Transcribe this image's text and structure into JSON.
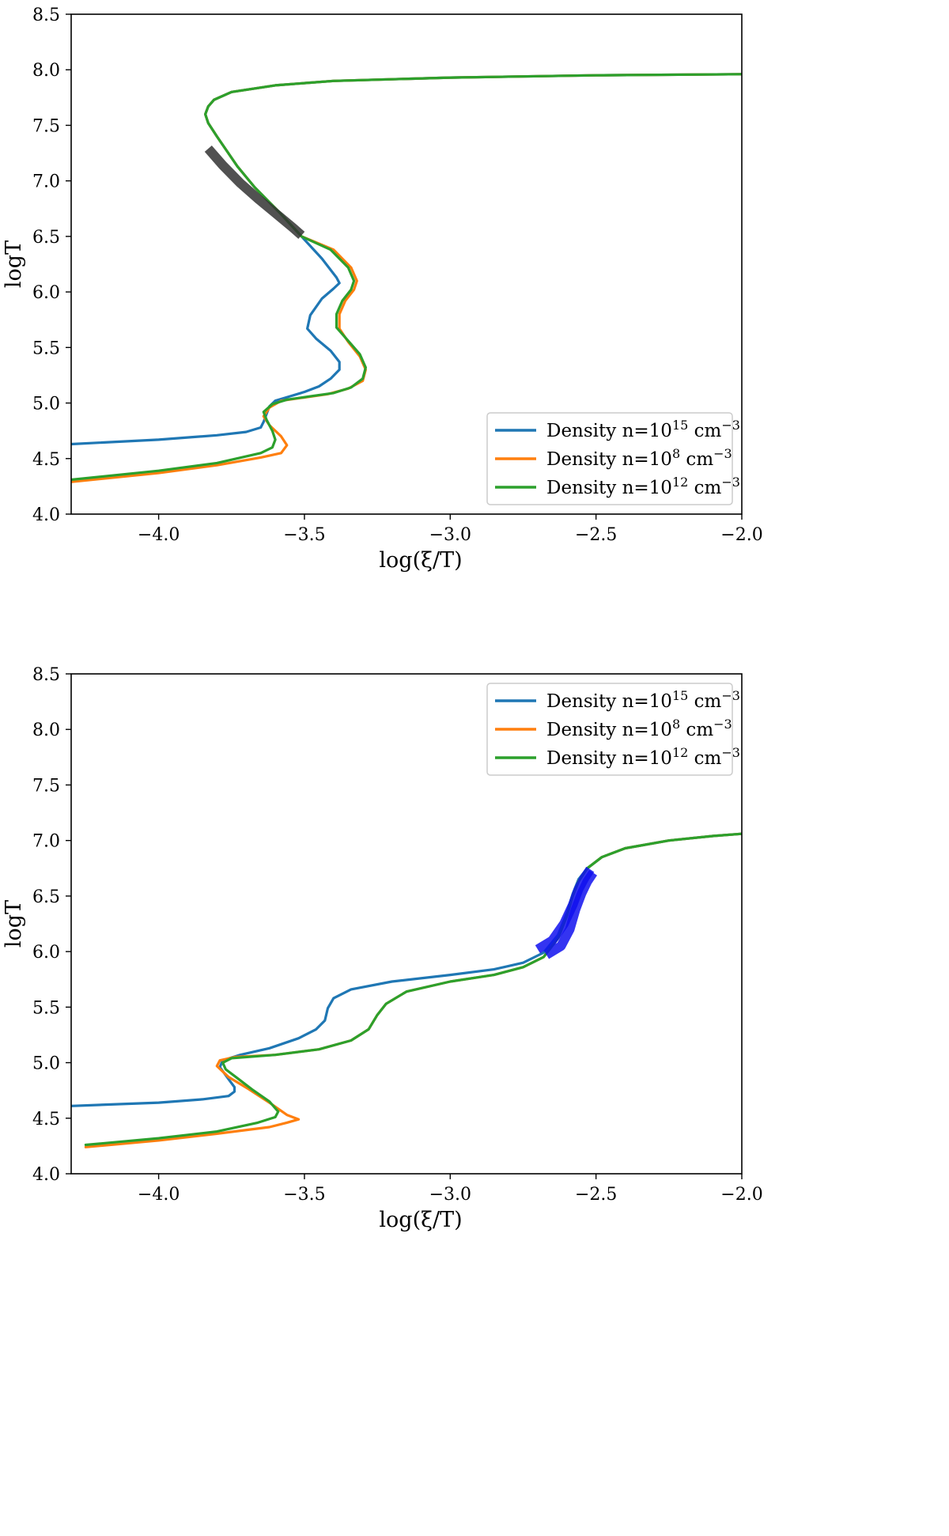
{
  "chart_data": [
    {
      "type": "line",
      "title": "",
      "xlabel": "log(ξ/T)",
      "ylabel": "logT",
      "xlim": [
        -4.3,
        -2.0
      ],
      "ylim": [
        4.0,
        8.5
      ],
      "xticks": [
        -4.0,
        -3.5,
        -3.0,
        -2.5,
        -2.0
      ],
      "xtick_labels": [
        "−4.0",
        "−3.5",
        "−3.0",
        "−2.5",
        "−2.0"
      ],
      "yticks": [
        4.0,
        4.5,
        5.0,
        5.5,
        6.0,
        6.5,
        7.0,
        7.5,
        8.0,
        8.5
      ],
      "ytick_labels": [
        "4.0",
        "4.5",
        "5.0",
        "5.5",
        "6.0",
        "6.5",
        "7.0",
        "7.5",
        "8.0",
        "8.5"
      ],
      "grid": false,
      "legend_position": "bottom-right",
      "series": [
        {
          "name": "Density n=10¹⁵ cm⁻³",
          "color": "#1f77b4",
          "x": [
            -4.3,
            -4.0,
            -3.8,
            -3.7,
            -3.65,
            -3.64,
            -3.63,
            -3.62,
            -3.6,
            -3.55,
            -3.5,
            -3.45,
            -3.41,
            -3.38,
            -3.38,
            -3.41,
            -3.46,
            -3.49,
            -3.48,
            -3.44,
            -3.4,
            -3.38,
            -3.39,
            -3.44,
            -3.51,
            -3.58,
            -3.67,
            -3.73,
            -3.8,
            -3.83,
            -3.84,
            -3.83,
            -3.81,
            -3.75,
            -3.6,
            -3.4,
            -3.0,
            -2.5,
            -2.0
          ],
          "y": [
            4.63,
            4.67,
            4.71,
            4.74,
            4.78,
            4.83,
            4.9,
            4.97,
            5.02,
            5.06,
            5.1,
            5.15,
            5.22,
            5.3,
            5.37,
            5.47,
            5.58,
            5.67,
            5.79,
            5.94,
            6.03,
            6.08,
            6.13,
            6.3,
            6.5,
            6.7,
            6.94,
            7.13,
            7.4,
            7.52,
            7.6,
            7.67,
            7.73,
            7.8,
            7.86,
            7.9,
            7.93,
            7.95,
            7.96
          ]
        },
        {
          "name": "Density n=10⁸ cm⁻³",
          "color": "#ff7f0e",
          "x": [
            -4.3,
            -4.0,
            -3.8,
            -3.65,
            -3.58,
            -3.56,
            -3.58,
            -3.62,
            -3.64,
            -3.62,
            -3.58,
            -3.5,
            -3.42,
            -3.35,
            -3.3,
            -3.29,
            -3.31,
            -3.35,
            -3.38,
            -3.38,
            -3.36,
            -3.33,
            -3.32,
            -3.34,
            -3.4,
            -3.51,
            -3.58,
            -3.67,
            -3.73,
            -3.8,
            -3.83,
            -3.84,
            -3.83,
            -3.81,
            -3.75,
            -3.6,
            -3.4,
            -3.0,
            -2.5,
            -2.0
          ],
          "y": [
            4.29,
            4.37,
            4.44,
            4.51,
            4.55,
            4.62,
            4.7,
            4.8,
            4.88,
            4.96,
            5.02,
            5.05,
            5.08,
            5.13,
            5.2,
            5.3,
            5.42,
            5.55,
            5.67,
            5.8,
            5.92,
            6.02,
            6.1,
            6.22,
            6.38,
            6.5,
            6.7,
            6.94,
            7.13,
            7.4,
            7.52,
            7.6,
            7.67,
            7.73,
            7.8,
            7.86,
            7.9,
            7.93,
            7.95,
            7.96
          ]
        },
        {
          "name": "Density n=10¹² cm⁻³",
          "color": "#2ca02c",
          "x": [
            -4.3,
            -4.0,
            -3.8,
            -3.65,
            -3.61,
            -3.6,
            -3.61,
            -3.63,
            -3.64,
            -3.61,
            -3.56,
            -3.48,
            -3.4,
            -3.34,
            -3.3,
            -3.29,
            -3.31,
            -3.35,
            -3.39,
            -3.39,
            -3.37,
            -3.34,
            -3.33,
            -3.35,
            -3.41,
            -3.51,
            -3.58,
            -3.67,
            -3.73,
            -3.8,
            -3.83,
            -3.84,
            -3.83,
            -3.81,
            -3.75,
            -3.6,
            -3.4,
            -3.0,
            -2.5,
            -2.0
          ],
          "y": [
            4.31,
            4.39,
            4.46,
            4.55,
            4.6,
            4.67,
            4.75,
            4.85,
            4.92,
            4.99,
            5.03,
            5.06,
            5.09,
            5.14,
            5.22,
            5.32,
            5.44,
            5.56,
            5.68,
            5.8,
            5.92,
            6.02,
            6.1,
            6.22,
            6.38,
            6.5,
            6.7,
            6.94,
            7.13,
            7.4,
            7.52,
            7.6,
            7.67,
            7.73,
            7.8,
            7.86,
            7.9,
            7.93,
            7.95,
            7.96
          ]
        }
      ],
      "highlight": {
        "color": "#333333",
        "x": [
          -3.83,
          -3.78,
          -3.72,
          -3.66,
          -3.6,
          -3.54,
          -3.51
        ],
        "y": [
          7.29,
          7.14,
          6.98,
          6.84,
          6.71,
          6.58,
          6.51
        ]
      }
    },
    {
      "type": "line",
      "title": "",
      "xlabel": "log(ξ/T)",
      "ylabel": "logT",
      "xlim": [
        -4.3,
        -2.0
      ],
      "ylim": [
        4.0,
        8.5
      ],
      "xticks": [
        -4.0,
        -3.5,
        -3.0,
        -2.5,
        -2.0
      ],
      "xtick_labels": [
        "−4.0",
        "−3.5",
        "−3.0",
        "−2.5",
        "−2.0"
      ],
      "yticks": [
        4.0,
        4.5,
        5.0,
        5.5,
        6.0,
        6.5,
        7.0,
        7.5,
        8.0,
        8.5
      ],
      "ytick_labels": [
        "4.0",
        "4.5",
        "5.0",
        "5.5",
        "6.0",
        "6.5",
        "7.0",
        "7.5",
        "8.0",
        "8.5"
      ],
      "grid": false,
      "legend_position": "top-right",
      "series": [
        {
          "name": "Density n=10¹⁵ cm⁻³",
          "color": "#1f77b4",
          "x": [
            -4.3,
            -4.0,
            -3.85,
            -3.76,
            -3.74,
            -3.74,
            -3.76,
            -3.79,
            -3.78,
            -3.72,
            -3.62,
            -3.52,
            -3.46,
            -3.43,
            -3.42,
            -3.4,
            -3.34,
            -3.2,
            -3.0,
            -2.85,
            -2.75,
            -2.68,
            -2.63,
            -2.6,
            -2.58,
            -2.56,
            -2.53,
            -2.48,
            -2.4,
            -2.25,
            -2.1,
            -2.0
          ],
          "y": [
            4.61,
            4.64,
            4.67,
            4.7,
            4.74,
            4.78,
            4.85,
            4.96,
            5.02,
            5.07,
            5.13,
            5.22,
            5.3,
            5.38,
            5.49,
            5.58,
            5.66,
            5.73,
            5.79,
            5.84,
            5.9,
            5.99,
            6.15,
            6.35,
            6.52,
            6.65,
            6.75,
            6.85,
            6.93,
            7.0,
            7.04,
            7.06
          ]
        },
        {
          "name": "Density n=10⁸ cm⁻³",
          "color": "#ff7f0e",
          "x": [
            -4.25,
            -4.0,
            -3.8,
            -3.62,
            -3.56,
            -3.52,
            -3.56,
            -3.62,
            -3.69,
            -3.76,
            -3.8,
            -3.79,
            -3.74,
            -3.6,
            -3.45,
            -3.34,
            -3.28,
            -3.25,
            -3.22,
            -3.15,
            -3.0,
            -2.85,
            -2.75,
            -2.68,
            -2.63,
            -2.6,
            -2.58,
            -2.56,
            -2.53,
            -2.48,
            -2.4,
            -2.25,
            -2.1,
            -2.0
          ],
          "y": [
            4.24,
            4.3,
            4.36,
            4.42,
            4.46,
            4.49,
            4.53,
            4.64,
            4.76,
            4.87,
            4.97,
            5.02,
            5.05,
            5.07,
            5.12,
            5.2,
            5.3,
            5.43,
            5.53,
            5.64,
            5.73,
            5.79,
            5.86,
            5.95,
            6.12,
            6.32,
            6.5,
            6.63,
            6.75,
            6.85,
            6.93,
            7.0,
            7.04,
            7.06
          ]
        },
        {
          "name": "Density n=10¹² cm⁻³",
          "color": "#2ca02c",
          "x": [
            -4.25,
            -4.0,
            -3.8,
            -3.66,
            -3.6,
            -3.59,
            -3.62,
            -3.68,
            -3.73,
            -3.77,
            -3.78,
            -3.75,
            -3.6,
            -3.45,
            -3.34,
            -3.28,
            -3.25,
            -3.22,
            -3.15,
            -3.0,
            -2.85,
            -2.75,
            -2.68,
            -2.63,
            -2.6,
            -2.58,
            -2.56,
            -2.53,
            -2.48,
            -2.4,
            -2.25,
            -2.1,
            -2.0
          ],
          "y": [
            4.26,
            4.32,
            4.38,
            4.46,
            4.51,
            4.56,
            4.65,
            4.76,
            4.86,
            4.94,
            5.0,
            5.04,
            5.07,
            5.12,
            5.2,
            5.3,
            5.43,
            5.53,
            5.64,
            5.73,
            5.79,
            5.86,
            5.95,
            6.12,
            6.32,
            6.5,
            6.63,
            6.75,
            6.85,
            6.93,
            7.0,
            7.04,
            7.06
          ]
        }
      ],
      "highlights": [
        {
          "color": "#1010ee",
          "x": [
            -2.7,
            -2.65,
            -2.61,
            -2.58,
            -2.56,
            -2.54,
            -2.52
          ],
          "y": [
            6.02,
            6.1,
            6.25,
            6.42,
            6.56,
            6.66,
            6.74
          ]
        },
        {
          "color": "#1010ee",
          "x": [
            -2.67,
            -2.62,
            -2.59,
            -2.57,
            -2.55,
            -2.53,
            -2.51
          ],
          "y": [
            5.97,
            6.05,
            6.2,
            6.38,
            6.52,
            6.63,
            6.71
          ]
        }
      ]
    }
  ]
}
